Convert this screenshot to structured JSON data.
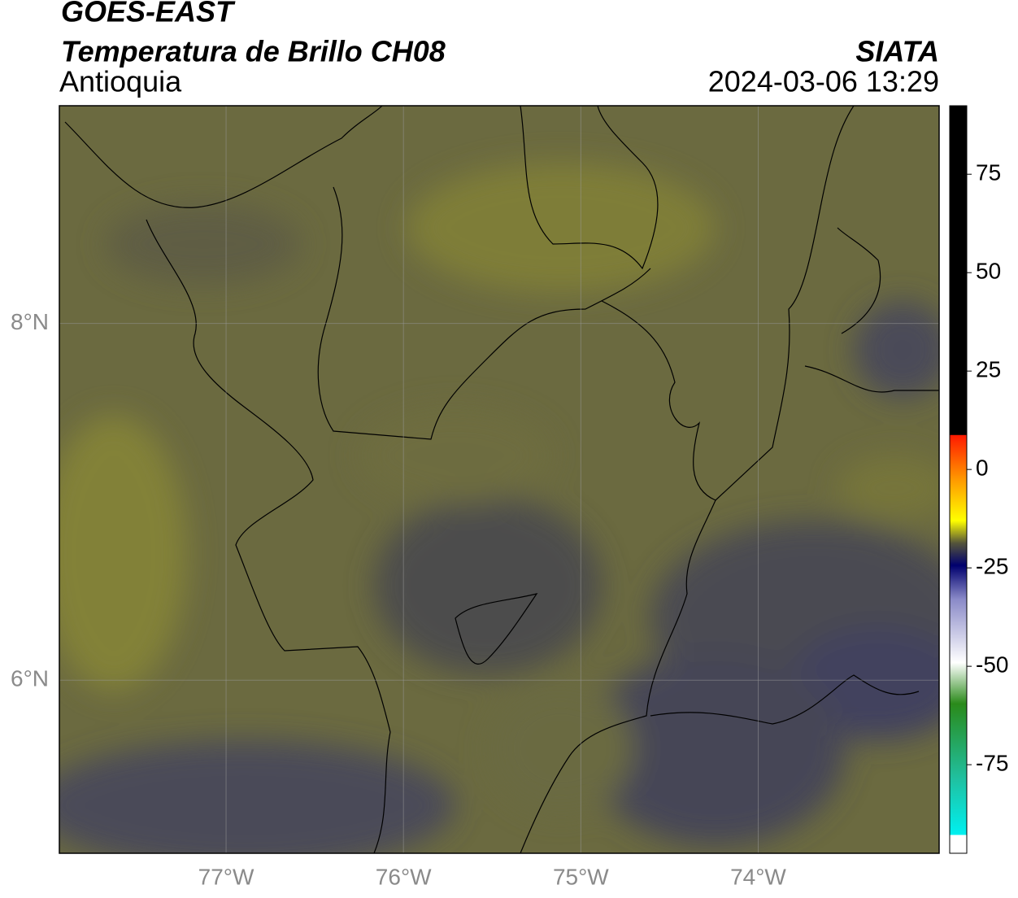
{
  "header": {
    "title": "GOES-EAST",
    "subtitle": "Temperatura de Brillo CH08",
    "region": "Antioquia",
    "source": "SIATA",
    "datetime": "2024-03-06 13:29"
  },
  "map": {
    "lonlim": [
      -77.94,
      -72.98
    ],
    "latlim": [
      5.03,
      9.22
    ],
    "lon_ticks": [
      {
        "value": -77,
        "label": "77°W"
      },
      {
        "value": -76,
        "label": "76°W"
      },
      {
        "value": -75,
        "label": "75°W"
      },
      {
        "value": -74,
        "label": "74°W"
      }
    ],
    "lat_ticks": [
      {
        "value": 8,
        "label": "8°N"
      },
      {
        "value": 6,
        "label": "6°N"
      }
    ]
  },
  "colorbar": {
    "lim": [
      -97.5,
      92.4
    ],
    "ticks": [
      75,
      50,
      25,
      0,
      -25,
      -50,
      -75
    ]
  }
}
